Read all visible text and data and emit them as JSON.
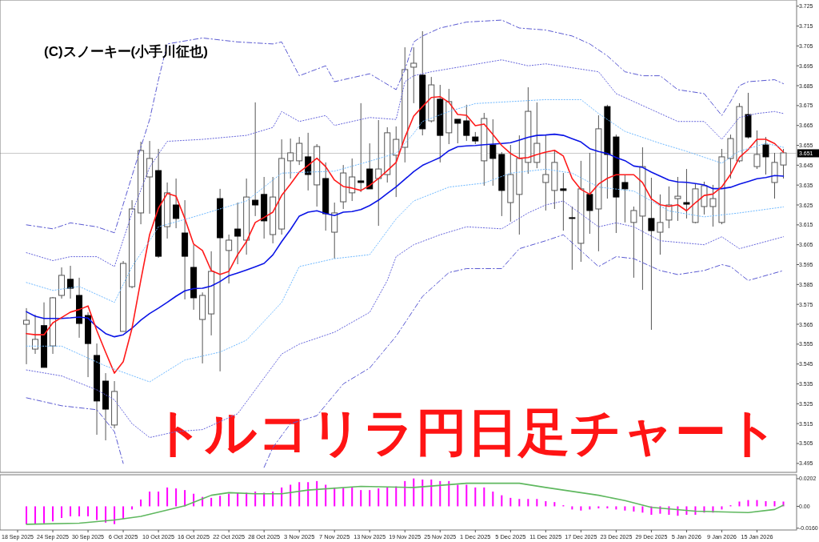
{
  "chart_data": [
    {
      "type": "candlestick",
      "title": "トルコリラ円日足チャート",
      "annotations": [
        "(C)スノーキー(小手川征也)"
      ],
      "categories": [
        null,
        null,
        null,
        null,
        null,
        null,
        null,
        null,
        null,
        null,
        null,
        null,
        null,
        null,
        null,
        null,
        null,
        null,
        null,
        null,
        null,
        null,
        null,
        null,
        null,
        null,
        null,
        null,
        null,
        null,
        null,
        null,
        null,
        null,
        null,
        null,
        null,
        null,
        null,
        null,
        null,
        null,
        null,
        null,
        null,
        null,
        null,
        null,
        null,
        null,
        null,
        null,
        null,
        null,
        null,
        null,
        null,
        null,
        null,
        null,
        null,
        null,
        null,
        null,
        null,
        null,
        null,
        null,
        null,
        null,
        null,
        null,
        null,
        null,
        null,
        null,
        null,
        null,
        null,
        null,
        null,
        null,
        null,
        null,
        null,
        null,
        null,
        null
      ],
      "ohlc": [
        null,
        [
          3.565,
          3.5731,
          3.5449,
          3.567
        ],
        [
          3.5525,
          3.5698,
          3.5501,
          3.5574
        ],
        [
          3.5643,
          3.576,
          3.5433,
          3.5433
        ],
        [
          3.5541,
          3.5787,
          3.5501,
          3.5783
        ],
        [
          3.5795,
          3.5936,
          3.5779,
          3.5896
        ],
        [
          3.5876,
          3.5944,
          3.5779,
          3.5831
        ],
        [
          3.5795,
          3.5884,
          3.5582,
          3.5654
        ],
        [
          3.5694,
          3.571,
          3.5384,
          3.5553
        ],
        [
          3.5493,
          3.5553,
          3.5094,
          3.5264
        ],
        [
          3.5364,
          3.5404,
          3.5066,
          3.5223
        ],
        [
          3.5143,
          3.5364,
          3.5127,
          3.5312
        ],
        [
          3.5614,
          3.5968,
          3.5614,
          3.5956
        ],
        [
          3.5839,
          3.6274,
          3.5831,
          3.623
        ],
        [
          3.621,
          3.6568,
          3.6153,
          3.6524
        ],
        [
          3.6391,
          3.6572,
          3.6206,
          3.6484
        ],
        [
          3.6423,
          3.6532,
          3.5984,
          3.5992
        ],
        [
          3.6141,
          3.6363,
          3.6081,
          3.6311
        ],
        [
          3.625,
          3.6383,
          3.6133,
          3.6182
        ],
        [
          3.6109,
          3.6274,
          3.5775,
          3.5992
        ],
        [
          3.5936,
          3.6049,
          3.5723,
          3.5783
        ],
        [
          3.5674,
          3.581,
          3.5453,
          3.5795
        ],
        [
          3.5702,
          3.6017,
          3.5594,
          3.5916
        ],
        [
          3.6282,
          3.6331,
          3.5413,
          3.6085
        ],
        [
          3.6021,
          3.6101,
          3.5855,
          3.6073
        ],
        [
          3.6129,
          3.6262,
          3.5952,
          3.6093
        ],
        [
          3.6073,
          3.6383,
          3.6,
          3.629
        ],
        [
          3.6274,
          3.6766,
          3.6194,
          3.625
        ],
        [
          3.6303,
          3.6391,
          3.6081,
          3.617
        ],
        [
          3.6101,
          3.6391,
          3.6057,
          3.629
        ],
        [
          3.6129,
          3.658,
          3.6101,
          3.6484
        ],
        [
          3.6472,
          3.6584,
          3.6383,
          3.6512
        ],
        [
          3.6472,
          3.6592,
          3.6451,
          3.656
        ],
        [
          3.6492,
          3.6613,
          3.6323,
          3.6403
        ],
        [
          3.6351,
          3.6556,
          3.6242,
          3.6544
        ],
        [
          3.6383,
          3.6464,
          3.6121,
          3.6206
        ],
        [
          3.6113,
          3.6262,
          3.598,
          3.621
        ],
        [
          3.6266,
          3.6451,
          3.623,
          3.6411
        ],
        [
          3.6311,
          3.6484,
          3.627,
          3.6391
        ],
        [
          3.6371,
          3.6762,
          3.6315,
          3.6363
        ],
        [
          3.6431,
          3.656,
          3.6331,
          3.6331
        ],
        [
          3.6383,
          3.6677,
          3.6145,
          3.6431
        ],
        [
          3.6403,
          3.6641,
          3.6363,
          3.6613
        ],
        [
          3.65,
          3.6645,
          3.629,
          3.658
        ],
        [
          3.654,
          3.7043,
          3.6464,
          3.6931
        ],
        [
          3.6943,
          3.7043,
          3.6762,
          3.6963
        ],
        [
          3.6903,
          3.7124,
          3.66,
          3.6633
        ],
        [
          3.6673,
          3.6894,
          3.6665,
          3.6854
        ],
        [
          3.6782,
          3.6854,
          3.6464,
          3.66
        ],
        [
          3.6613,
          3.6834,
          3.6556,
          3.677
        ],
        [
          3.6681,
          3.6681,
          3.656,
          3.6661
        ],
        [
          3.6673,
          3.6754,
          3.6572,
          3.66
        ],
        [
          3.6592,
          3.6617,
          3.6556,
          3.6572
        ],
        [
          3.6472,
          3.6713,
          3.6347,
          3.6685
        ],
        [
          3.6552,
          3.6681,
          3.6347,
          3.6484
        ],
        [
          3.6504,
          3.6516,
          3.6194,
          3.6323
        ],
        [
          3.6262,
          3.6552,
          3.6166,
          3.6403
        ],
        [
          3.6303,
          3.66,
          3.6101,
          3.6484
        ],
        [
          3.6464,
          3.6842,
          3.6407,
          3.6721
        ],
        [
          3.6464,
          3.6766,
          3.6435,
          3.656
        ],
        [
          3.6363,
          3.66,
          3.6222,
          3.6403
        ],
        [
          3.6323,
          3.6524,
          3.623,
          3.6464
        ],
        [
          3.6331,
          3.6411,
          3.6121,
          3.6323
        ],
        [
          3.6186,
          3.6242,
          3.5924,
          3.6182
        ],
        [
          3.6057,
          3.6472,
          3.5964,
          3.6331
        ],
        [
          3.6303,
          3.6512,
          3.6105,
          3.6222
        ],
        [
          3.623,
          3.6701,
          3.6017,
          3.6633
        ],
        [
          3.6745,
          3.6754,
          3.6282,
          3.6504
        ],
        [
          3.6592,
          3.6604,
          3.6109,
          3.629
        ],
        [
          3.6363,
          3.6403,
          3.6162,
          3.6331
        ],
        [
          3.6162,
          3.6242,
          3.5884,
          3.6222
        ],
        [
          3.6194,
          3.654,
          3.5823,
          3.6443
        ],
        [
          3.6182,
          3.6387,
          3.5622,
          3.6121
        ],
        [
          3.6113,
          3.6303,
          3.6,
          3.6162
        ],
        [
          3.6174,
          3.6343,
          3.6133,
          3.625
        ],
        [
          3.6282,
          3.6391,
          3.617,
          3.6294
        ],
        [
          3.6262,
          3.6431,
          3.6182,
          3.6254
        ],
        [
          3.6162,
          3.6355,
          3.6158,
          3.6331
        ],
        [
          3.6242,
          3.6367,
          3.6202,
          3.6347
        ],
        [
          3.6242,
          3.6351,
          3.6141,
          3.6282
        ],
        [
          3.6162,
          3.6532,
          3.6153,
          3.6492
        ],
        [
          3.6484,
          3.6604,
          3.6383,
          3.6584
        ],
        [
          3.6472,
          3.6762,
          3.6464,
          3.6745
        ],
        [
          3.6705,
          3.6814,
          3.6584,
          3.6592
        ],
        [
          3.6443,
          3.6625,
          3.6431,
          3.6504
        ],
        [
          3.6552,
          3.6592,
          3.6403,
          3.6492
        ],
        [
          3.6363,
          3.6512,
          3.6282,
          3.6464
        ],
        [
          3.6451,
          3.6532,
          3.6383,
          3.6512
        ]
      ],
      "series": [
        {
          "type": "line",
          "color": "#0a14e6",
          "line_style": "solid",
          "values": [
            null,
            3.5713,
            3.569,
            3.5679,
            3.5679,
            3.5679,
            3.5682,
            3.5686,
            3.5681,
            3.5637,
            3.5603,
            3.5587,
            3.5597,
            3.563,
            3.5671,
            3.5704,
            3.5731,
            3.576,
            3.5791,
            3.5818,
            3.5829,
            3.5831,
            3.5842,
            3.5865,
            3.5894,
            3.5908,
            3.5923,
            3.5939,
            3.5956,
            3.5999,
            3.6066,
            3.6126,
            3.6194,
            3.6214,
            3.6221,
            3.6207,
            3.6197,
            3.6214,
            3.6217,
            3.6227,
            3.6247,
            3.6274,
            3.6308,
            3.6341,
            3.6379,
            3.6418,
            3.6449,
            3.6469,
            3.6489,
            3.6523,
            3.6543,
            3.6547,
            3.6549,
            3.6553,
            3.6556,
            3.6559,
            3.6563,
            3.6576,
            3.659,
            3.66,
            3.6602,
            3.6606,
            3.66,
            3.6583,
            3.6567,
            3.6533,
            3.6519,
            3.6509,
            3.6489,
            3.6473,
            3.6446,
            3.6439,
            3.6415,
            3.6395,
            3.6375,
            3.6366,
            3.6364,
            3.6358,
            3.6351,
            3.6332,
            3.6332,
            3.6339,
            3.6355,
            3.6368,
            3.6382,
            3.6388,
            3.6398,
            3.6395
          ]
        },
        {
          "type": "line",
          "color": "#ff1a1a",
          "line_style": "solid",
          "values": [
            null,
            3.5603,
            3.5597,
            3.5597,
            3.5657,
            3.5684,
            3.5711,
            3.5724,
            3.5742,
            3.5618,
            3.5509,
            3.5404,
            3.5462,
            3.563,
            3.5872,
            3.6101,
            3.6234,
            3.6308,
            3.6294,
            3.6182,
            3.6053,
            3.6021,
            3.592,
            3.5901,
            3.5916,
            3.6,
            3.6066,
            3.6162,
            3.6187,
            3.6214,
            3.6298,
            3.6355,
            3.6415,
            3.6449,
            3.6485,
            3.6443,
            3.6375,
            3.6343,
            3.6335,
            3.6323,
            3.6348,
            3.6383,
            3.6423,
            3.6464,
            3.659,
            3.6697,
            3.6745,
            3.6791,
            3.6795,
            3.6766,
            3.6705,
            3.6701,
            3.6649,
            3.6657,
            3.6604,
            3.6549,
            3.6509,
            3.6484,
            3.6489,
            3.6504,
            3.6516,
            3.6525,
            3.6496,
            3.6383,
            3.6328,
            3.6304,
            3.6355,
            3.6384,
            3.6402,
            3.6402,
            3.6402,
            3.6362,
            3.6281,
            3.6251,
            3.6243,
            3.6251,
            3.6221,
            3.6261,
            3.6298,
            3.6305,
            3.6341,
            3.6404,
            3.6489,
            3.6529,
            3.658,
            3.658,
            3.6559,
            3.6516
          ]
        },
        {
          "type": "line",
          "color": "#5a5ad2",
          "line_style": "dashed",
          "values": [
            null,
            3.615,
            null,
            null,
            3.613,
            null,
            3.616,
            null,
            null,
            3.614,
            null,
            3.611,
            null,
            null,
            3.654,
            3.668,
            3.688,
            3.706,
            null,
            null,
            null,
            3.709,
            null,
            null,
            null,
            3.707,
            null,
            null,
            null,
            3.706,
            3.707,
            null,
            3.69,
            null,
            null,
            3.695,
            3.687,
            null,
            null,
            null,
            3.691,
            null,
            null,
            3.683,
            3.693,
            3.707,
            3.71,
            null,
            3.714,
            null,
            null,
            3.717,
            null,
            null,
            null,
            3.718,
            null,
            3.714,
            null,
            null,
            3.713,
            null,
            null,
            3.71,
            null,
            3.706,
            null,
            3.7,
            null,
            3.692,
            null,
            3.69,
            null,
            3.69,
            null,
            3.683,
            null,
            null,
            3.681,
            null,
            3.67,
            3.677,
            3.685,
            3.687,
            null,
            null,
            3.688,
            3.686
          ]
        },
        {
          "type": "line",
          "color": "#6464dc",
          "line_style": "dotted",
          "values": [
            null,
            3.601,
            null,
            null,
            3.597,
            null,
            3.599,
            null,
            null,
            3.599,
            null,
            3.594,
            null,
            3.621,
            null,
            3.644,
            null,
            3.657,
            null,
            null,
            null,
            3.658,
            null,
            null,
            null,
            null,
            3.66,
            null,
            null,
            3.664,
            3.672,
            null,
            3.667,
            null,
            null,
            3.67,
            3.665,
            null,
            null,
            null,
            3.669,
            null,
            null,
            3.668,
            3.687,
            3.69,
            null,
            3.692,
            null,
            null,
            null,
            3.695,
            null,
            null,
            null,
            3.698,
            null,
            null,
            3.695,
            null,
            3.696,
            null,
            null,
            3.694,
            null,
            null,
            3.692,
            null,
            3.681,
            null,
            null,
            null,
            3.673,
            null,
            null,
            3.667,
            null,
            null,
            3.667,
            null,
            3.658,
            null,
            3.669,
            null,
            3.671,
            null,
            3.672,
            3.671
          ]
        },
        {
          "type": "line",
          "color": "#6eb9ff",
          "line_style": "dotted",
          "values": [
            null,
            3.586,
            null,
            null,
            3.582,
            null,
            null,
            3.584,
            null,
            null,
            null,
            3.576,
            null,
            3.594,
            null,
            3.607,
            3.614,
            null,
            null,
            null,
            3.619,
            null,
            null,
            3.623,
            null,
            null,
            3.627,
            null,
            null,
            null,
            3.641,
            null,
            null,
            null,
            null,
            null,
            3.642,
            null,
            null,
            null,
            3.647,
            null,
            null,
            3.651,
            null,
            3.661,
            3.667,
            null,
            null,
            3.672,
            null,
            null,
            3.676,
            null,
            null,
            null,
            3.677,
            null,
            null,
            null,
            3.678,
            null,
            null,
            null,
            3.678,
            null,
            3.671,
            null,
            null,
            3.662,
            null,
            null,
            null,
            3.656,
            null,
            null,
            3.652,
            null,
            null,
            null,
            3.646,
            null,
            3.652,
            null,
            null,
            3.656,
            null,
            3.654
          ]
        },
        {
          "type": "line",
          "color": "#6eb9ff",
          "line_style": "dotted",
          "values": [
            null,
            3.554,
            null,
            null,
            null,
            3.554,
            null,
            null,
            null,
            null,
            3.544,
            null,
            null,
            null,
            null,
            3.536,
            null,
            null,
            null,
            3.547,
            null,
            null,
            null,
            3.551,
            null,
            null,
            3.557,
            null,
            null,
            null,
            3.576,
            null,
            3.594,
            null,
            null,
            null,
            3.598,
            null,
            null,
            null,
            3.6,
            null,
            null,
            3.618,
            null,
            3.627,
            null,
            null,
            null,
            3.634,
            null,
            null,
            null,
            3.636,
            null,
            null,
            3.641,
            null,
            null,
            null,
            3.643,
            null,
            null,
            3.641,
            null,
            null,
            3.634,
            null,
            null,
            null,
            3.632,
            null,
            null,
            null,
            3.622,
            null,
            null,
            null,
            3.619,
            null,
            null,
            null,
            3.621,
            null,
            null,
            null,
            null,
            3.624
          ]
        },
        {
          "type": "line",
          "color": "#6464dc",
          "line_style": "dotted",
          "values": [
            null,
            3.542,
            null,
            null,
            null,
            3.539,
            null,
            null,
            null,
            3.532,
            null,
            3.527,
            null,
            3.515,
            null,
            3.508,
            null,
            null,
            3.511,
            null,
            null,
            3.512,
            null,
            null,
            null,
            3.52,
            null,
            null,
            null,
            null,
            3.55,
            null,
            3.555,
            null,
            null,
            null,
            3.561,
            null,
            null,
            null,
            3.571,
            null,
            3.587,
            3.599,
            null,
            3.605,
            null,
            null,
            3.61,
            null,
            null,
            3.614,
            null,
            null,
            null,
            3.613,
            null,
            null,
            3.621,
            null,
            3.625,
            null,
            3.627,
            null,
            null,
            null,
            3.614,
            null,
            3.616,
            null,
            3.614,
            null,
            null,
            3.607,
            null,
            null,
            null,
            null,
            3.605,
            null,
            3.609,
            null,
            3.603,
            null,
            null,
            null,
            null,
            3.609
          ]
        },
        {
          "type": "line",
          "color": "#5a5ad2",
          "line_style": "dashed",
          "values": [
            null,
            3.528,
            null,
            null,
            null,
            3.524,
            null,
            null,
            null,
            3.522,
            null,
            3.511,
            3.495,
            null,
            null,
            null,
            null,
            null,
            null,
            null,
            null,
            null,
            null,
            null,
            null,
            null,
            null,
            null,
            null,
            null,
            null,
            null,
            null,
            null,
            null,
            null,
            null,
            null,
            null,
            null,
            null,
            null,
            null,
            null,
            null,
            null,
            null,
            null,
            null,
            null,
            null,
            null,
            null,
            null,
            null,
            null,
            null,
            null,
            null,
            null,
            null,
            null,
            null,
            null,
            null,
            null,
            null,
            null,
            null,
            null,
            null,
            null,
            null,
            null,
            null,
            null,
            null,
            null,
            null,
            null,
            null,
            null,
            null,
            null,
            null,
            null,
            null,
            null
          ]
        },
        {
          "type": "line",
          "color": "#5a5ad2",
          "line_style": "dashed",
          "values": [
            null,
            null,
            null,
            null,
            null,
            null,
            null,
            null,
            null,
            null,
            null,
            null,
            null,
            null,
            null,
            null,
            null,
            null,
            null,
            null,
            null,
            null,
            null,
            null,
            null,
            null,
            null,
            null,
            3.493,
            3.503,
            null,
            3.515,
            null,
            null,
            3.519,
            null,
            null,
            3.535,
            null,
            null,
            3.543,
            null,
            null,
            3.559,
            null,
            null,
            3.579,
            null,
            null,
            3.591,
            null,
            3.593,
            null,
            null,
            null,
            3.593,
            null,
            3.603,
            null,
            null,
            3.607,
            null,
            3.61,
            null,
            null,
            null,
            3.594,
            null,
            3.599,
            null,
            3.598,
            null,
            null,
            3.592,
            null,
            3.59,
            null,
            null,
            3.592,
            null,
            3.595,
            3.594,
            null,
            3.587,
            null,
            null,
            null,
            3.592
          ]
        }
      ],
      "ref_lines": [
        {
          "axis": "y",
          "value": 3.651,
          "label": "3.651",
          "color": "#c8c8c8"
        }
      ],
      "ylim": [
        3.4905,
        3.7281
      ],
      "yticks": [
        3.495,
        3.505,
        3.515,
        3.525,
        3.535,
        3.545,
        3.555,
        3.565,
        3.575,
        3.585,
        3.595,
        3.605,
        3.615,
        3.625,
        3.635,
        3.645,
        3.655,
        3.665,
        3.675,
        3.685,
        3.695,
        3.705,
        3.715,
        3.725
      ],
      "tick_labels": "y"
    },
    {
      "type": "bar",
      "categories": [
        "18 Sep 2025",
        null,
        null,
        null,
        "24 Sep 2025",
        null,
        null,
        null,
        "30 Sep 2025",
        null,
        null,
        null,
        "6 Oct 2025",
        null,
        null,
        null,
        "10 Oct 2025",
        null,
        null,
        null,
        "16 Oct 2025",
        null,
        null,
        null,
        "22 Oct 2025",
        null,
        null,
        null,
        "28 Oct 2025",
        null,
        null,
        null,
        "3 Nov 2025",
        null,
        null,
        null,
        "7 Nov 2025",
        null,
        null,
        null,
        "13 Nov 2025",
        null,
        null,
        null,
        "19 Nov 2025",
        null,
        null,
        null,
        "25 Nov 2025",
        null,
        null,
        null,
        "1 Dec 2025",
        null,
        null,
        null,
        "5 Dec 2025",
        null,
        null,
        null,
        "11 Dec 2025",
        null,
        null,
        null,
        "17 Dec 2025",
        null,
        null,
        null,
        "23 Dec 2025",
        null,
        null,
        null,
        "29 Dec 2025",
        null,
        null,
        null,
        "5 Jan 2026",
        null,
        null,
        null,
        "9 Jan 2026",
        null,
        null,
        null,
        "15 Jan 2026",
        null,
        null,
        null
      ],
      "series": [
        {
          "type": "bar",
          "color": "#ff00ff",
          "values": [
            null,
            -0.013,
            -0.013,
            -0.0125,
            -0.011,
            -0.0085,
            -0.0073,
            -0.0073,
            -0.0073,
            -0.01,
            -0.0119,
            -0.013,
            -0.0092,
            -0.0023,
            0.005,
            0.0108,
            0.0108,
            0.0138,
            0.0131,
            0.0119,
            0.0092,
            0.0069,
            0.0062,
            0.0077,
            0.0092,
            0.01,
            0.01,
            0.0108,
            0.01,
            0.0108,
            0.0138,
            0.0158,
            0.0177,
            0.0177,
            0.0185,
            0.0158,
            0.0138,
            0.0138,
            0.0138,
            0.0119,
            0.0119,
            0.0131,
            0.0138,
            0.0146,
            0.0185,
            0.0204,
            0.0196,
            0.0196,
            0.0185,
            0.0185,
            0.0158,
            0.0158,
            0.0138,
            0.0138,
            0.0108,
            0.0081,
            0.0062,
            0.0054,
            0.0054,
            0.0054,
            0.0038,
            0.0031,
            0.0008,
            -0.0023,
            -0.0031,
            -0.0023,
            -0.0015,
            -0.0015,
            -0.0023,
            -0.0031,
            -0.0038,
            -0.0046,
            -0.0062,
            -0.0054,
            -0.0062,
            -0.0069,
            -0.0062,
            -0.0062,
            -0.0046,
            -0.0046,
            -0.0023,
            0.0008,
            0.0035,
            0.0046,
            0.0046,
            0.0038,
            0.0038,
            0.0035
          ]
        },
        {
          "type": "line",
          "color": "#5fb85f",
          "line_style": "solid",
          "values": [
            null,
            -0.0131,
            null,
            null,
            null,
            null,
            null,
            -0.0123,
            null,
            null,
            null,
            -0.01,
            null,
            null,
            -0.0073,
            null,
            null,
            null,
            null,
            0.0004,
            null,
            null,
            0.0081,
            null,
            0.01,
            null,
            null,
            0.0092,
            null,
            null,
            0.0092,
            null,
            null,
            0.0119,
            null,
            null,
            null,
            null,
            null,
            0.0146,
            null,
            null,
            null,
            null,
            null,
            0.0138,
            null,
            null,
            null,
            null,
            null,
            0.0169,
            null,
            null,
            null,
            null,
            null,
            0.0169,
            null,
            null,
            0.0138,
            null,
            null,
            null,
            null,
            null,
            0.0081,
            null,
            null,
            0.0042,
            null,
            null,
            -0.0008,
            null,
            null,
            null,
            null,
            -0.0035,
            null,
            null,
            null,
            null,
            null,
            -0.0046,
            null,
            null,
            -0.0023,
            0.0008
          ]
        }
      ],
      "ylim": [
        -0.0173,
        0.0231
      ],
      "yticks": [
        0.0202,
        {
          "value": 0,
          "label": "0.00"
        },
        {
          "value": -0.016,
          "label": "-0.0160"
        }
      ]
    }
  ]
}
